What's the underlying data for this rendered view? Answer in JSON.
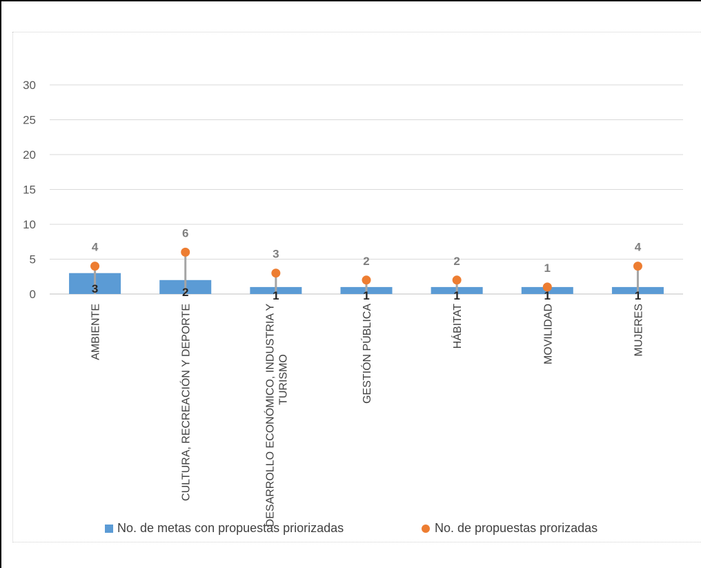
{
  "chart_data": {
    "type": "bar",
    "categories": [
      "AMBIENTE",
      "CULTURA, RECREACIÓN Y DEPORTE",
      "DESARROLLO ECONÓMICO, INDUSTRIA Y TURISMO",
      "GESTIÓN PÚBLICA",
      "HÁBITAT",
      "MOVILIDAD",
      "MUJERES"
    ],
    "category_lines": [
      [
        "AMBIENTE"
      ],
      [
        "CULTURA, RECREACIÓN Y DEPORTE"
      ],
      [
        "DESARROLLO ECONÓMICO, INDUSTRIA Y",
        "TURISMO"
      ],
      [
        "GESTIÓN PÚBLICA"
      ],
      [
        "HÁBITAT"
      ],
      [
        "MOVILIDAD"
      ],
      [
        "MUJERES"
      ]
    ],
    "series": [
      {
        "name": "No. de metas con propuestas priorizadas",
        "type": "bar",
        "values": [
          3,
          2,
          1,
          1,
          1,
          1,
          1
        ],
        "color": "#5b9bd5"
      },
      {
        "name": "No. de propuestas prorizadas",
        "type": "scatter",
        "values": [
          4,
          6,
          3,
          2,
          2,
          1,
          4
        ],
        "color": "#ed7d31"
      }
    ],
    "y_ticks": [
      "0",
      "5",
      "10",
      "15",
      "20",
      "25",
      "30"
    ],
    "ylim": [
      0,
      30
    ],
    "title": "",
    "xlabel": "",
    "ylabel": "",
    "grid": true,
    "legend_position": "bottom"
  }
}
